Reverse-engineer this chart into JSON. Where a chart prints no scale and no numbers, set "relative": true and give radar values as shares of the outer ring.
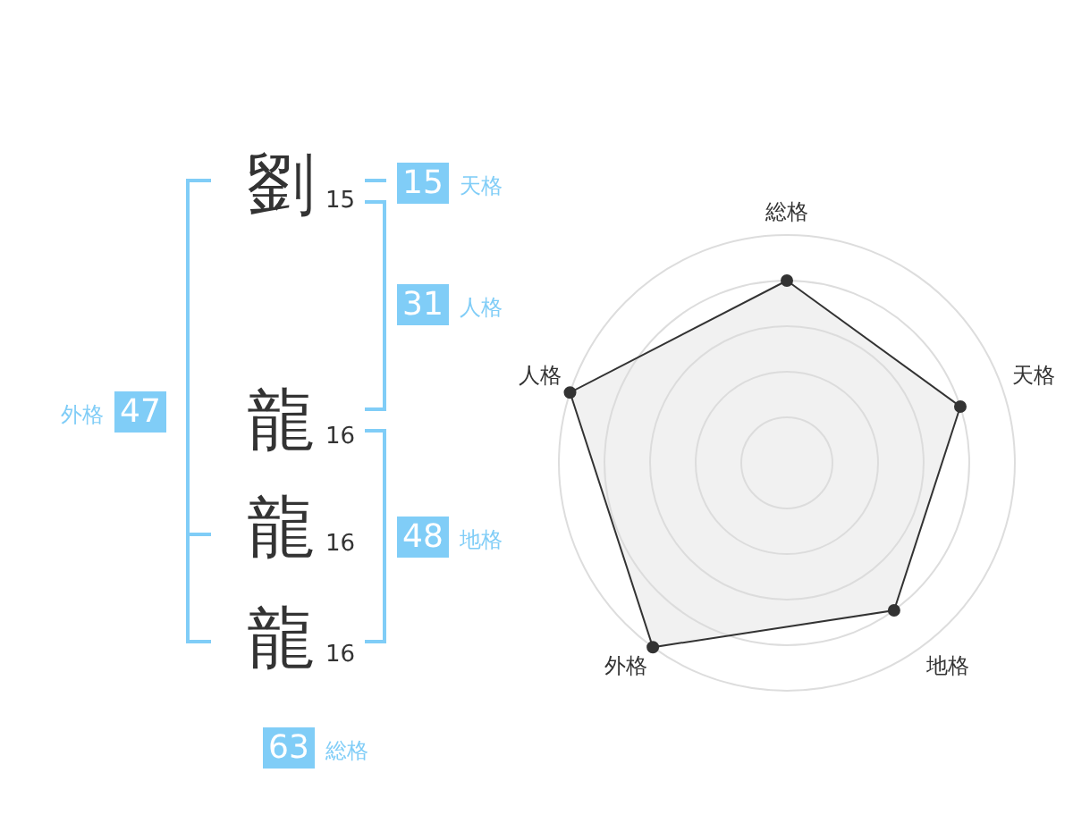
{
  "chart_data": [
    {
      "type": "other",
      "categories": [
        "劉",
        "龍",
        "龍",
        "龍"
      ],
      "values": [
        15,
        16,
        16,
        16
      ],
      "color": "#80cdf7",
      "data_labels": true,
      "annotations": [
        "15",
        "天格",
        "31",
        "人格",
        "48",
        "地格",
        "外格",
        "47",
        "63",
        "総格"
      ]
    },
    {
      "type": "radar",
      "relative": true,
      "categories": [
        "総格",
        "天格",
        "地格",
        "外格",
        "人格"
      ],
      "series": [
        {
          "color": "#333333",
          "values": [
            0.8,
            0.8,
            0.8,
            1,
            1
          ]
        }
      ],
      "grid": true,
      "marker": "circle"
    }
  ]
}
